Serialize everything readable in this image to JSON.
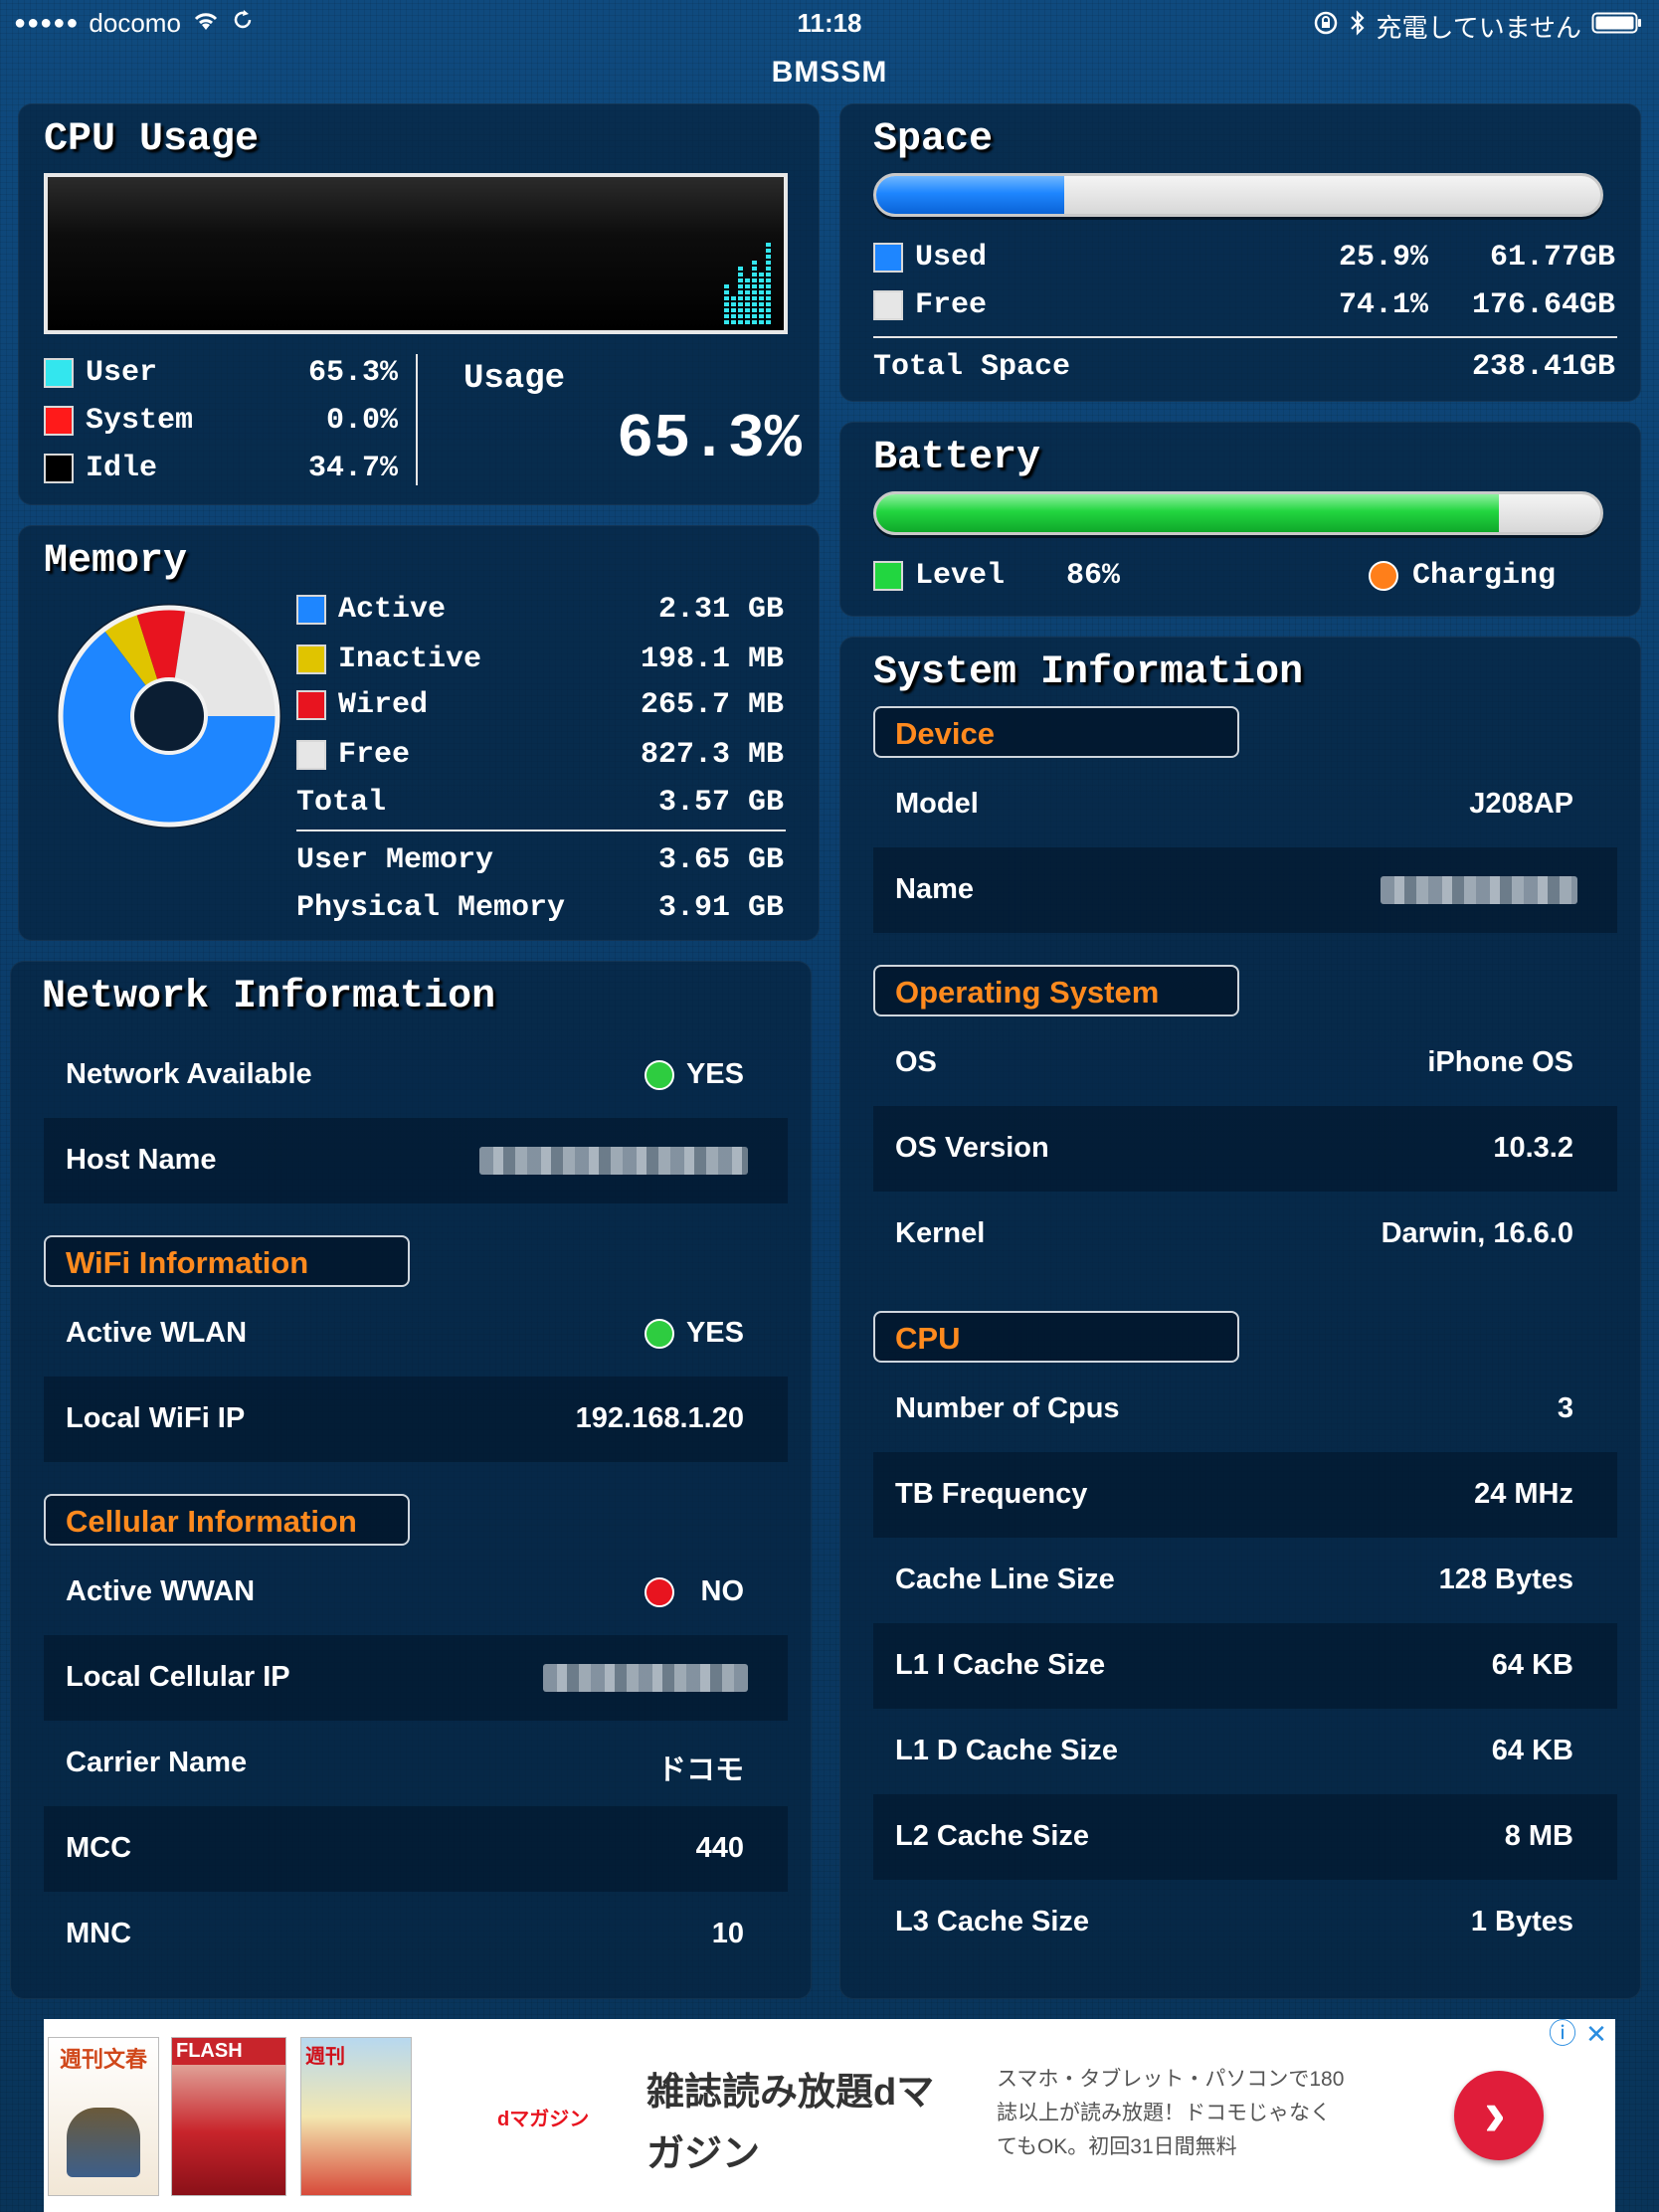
{
  "status_bar": {
    "carrier": "docomo",
    "signal_dots": "●●●●●",
    "time": "11:18",
    "charging_text": "充電していません"
  },
  "app_title": "BMSSM",
  "cpu": {
    "title": "CPU Usage",
    "legend": [
      {
        "label": "User",
        "value": "65.3%",
        "color": "#33e6ee"
      },
      {
        "label": "System",
        "value": "0.0%",
        "color": "#ff1a1a"
      },
      {
        "label": "Idle",
        "value": "34.7%",
        "color": "#000000"
      }
    ],
    "usage_label": "Usage",
    "usage_value": "65.3%",
    "usage_fraction": 0.653
  },
  "space": {
    "title": "Space",
    "used_fraction": 0.259,
    "used_label": "Used",
    "used_pct": "25.9%",
    "used_size": "61.77GB",
    "free_label": "Free",
    "free_pct": "74.1%",
    "free_size": "176.64GB",
    "total_label": "Total Space",
    "total_size": "238.41GB",
    "used_color": "#1e86ff",
    "free_color": "#e6e6e6"
  },
  "battery": {
    "title": "Battery",
    "level_fraction": 0.86,
    "level_label": "Level",
    "level_value": "86%",
    "charging_label": "Charging",
    "level_color": "#22d640",
    "charging_color": "#ff7f1a"
  },
  "memory": {
    "title": "Memory",
    "items": [
      {
        "label": "Active",
        "value": "2.31 GB",
        "fraction": 0.647,
        "color": "#1e86ff"
      },
      {
        "label": "Inactive",
        "value": "198.1 MB",
        "fraction": 0.054,
        "color": "#e0c400"
      },
      {
        "label": "Wired",
        "value": "265.7 MB",
        "fraction": 0.073,
        "color": "#e8141f"
      },
      {
        "label": "Free",
        "value": "827.3 MB",
        "fraction": 0.226,
        "color": "#e6e6e6"
      }
    ],
    "total_label": "Total",
    "total_value": "3.57 GB",
    "user_memory_label": "User Memory",
    "user_memory_value": "3.65 GB",
    "physical_memory_label": "Physical Memory",
    "physical_memory_value": "3.91 GB"
  },
  "network": {
    "title": "Network Information",
    "network_available_label": "Network Available",
    "network_available_value": "YES",
    "host_name_label": "Host Name",
    "wifi_section": "WiFi Information",
    "active_wlan_label": "Active WLAN",
    "active_wlan_value": "YES",
    "local_wifi_ip_label": "Local WiFi IP",
    "local_wifi_ip_value": "192.168.1.20",
    "cellular_section": "Cellular Information",
    "active_wwan_label": "Active WWAN",
    "active_wwan_value": "NO",
    "local_cellular_ip_label": "Local Cellular IP",
    "carrier_name_label": "Carrier Name",
    "carrier_name_value": "ドコモ",
    "mcc_label": "MCC",
    "mcc_value": "440",
    "mnc_label": "MNC",
    "mnc_value": "10",
    "yes_color": "#2ecc40",
    "no_color": "#e8141f"
  },
  "system": {
    "title": "System Information",
    "device_section": "Device",
    "model_label": "Model",
    "model_value": "J208AP",
    "name_label": "Name",
    "os_section": "Operating System",
    "os_label": "OS",
    "os_value": "iPhone OS",
    "os_version_label": "OS Version",
    "os_version_value": "10.3.2",
    "kernel_label": "Kernel",
    "kernel_value": "Darwin, 16.6.0",
    "cpu_section": "CPU",
    "rows": [
      {
        "label": "Number of Cpus",
        "value": "3"
      },
      {
        "label": "TB Frequency",
        "value": "24 MHz"
      },
      {
        "label": "Cache Line Size",
        "value": "128 Bytes"
      },
      {
        "label": "L1 I Cache Size",
        "value": "64 KB"
      },
      {
        "label": "L1 D Cache Size",
        "value": "64 KB"
      },
      {
        "label": "L2 Cache Size",
        "value": "8 MB"
      },
      {
        "label": "L3 Cache Size",
        "value": "1 Bytes"
      }
    ]
  },
  "ad": {
    "logo_text": "dマガジン",
    "headline_line1": "雑誌読み放題dマ",
    "headline_line2": "ガジン",
    "body_line1": "スマホ・タブレット・パソコンで180",
    "body_line2": "誌以上が読み放題！ドコモじゃなく",
    "body_line3": "てもOK。初回31日間無料",
    "info_icon": "ⓘ",
    "close_icon": "✕",
    "arrow_icon": "›"
  }
}
